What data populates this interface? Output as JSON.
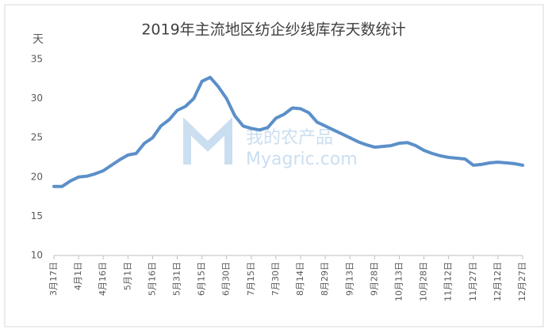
{
  "chart_data": {
    "type": "line",
    "title": "2019年主流地区纺企纱线库存天数统计",
    "y_label": "天",
    "watermark": [
      "我的农产品",
      "Myagric.com"
    ],
    "categories": [
      "3月17日",
      null,
      null,
      "4月1日",
      null,
      null,
      "4月16日",
      null,
      null,
      "5月1日",
      null,
      null,
      "5月16日",
      null,
      null,
      "5月31日",
      null,
      null,
      "6月15日",
      null,
      null,
      "6月30日",
      null,
      null,
      "7月15日",
      null,
      null,
      "7月30日",
      null,
      null,
      "8月14日",
      null,
      null,
      "8月29日",
      null,
      null,
      "9月13日",
      null,
      null,
      "9月28日",
      null,
      null,
      "10月13日",
      null,
      null,
      "10月28日",
      null,
      null,
      "11月12日",
      null,
      null,
      "11月27日",
      null,
      null,
      "12月12日",
      null,
      null,
      "12月27日"
    ],
    "series": [
      {
        "color": "#5b8fc9",
        "values": [
          18.8,
          18.8,
          19.5,
          20.0,
          20.1,
          20.4,
          20.8,
          21.5,
          22.2,
          22.8,
          23.0,
          24.3,
          25.0,
          26.5,
          27.3,
          28.5,
          29.0,
          30.0,
          32.2,
          32.7,
          31.5,
          30.0,
          27.8,
          26.5,
          26.2,
          26.0,
          26.3,
          27.5,
          28.0,
          28.8,
          28.7,
          28.2,
          27.0,
          26.5,
          26.0,
          25.5,
          25.0,
          24.5,
          24.1,
          23.8,
          23.9,
          24.0,
          24.3,
          24.4,
          24.0,
          23.4,
          23.0,
          22.7,
          22.5,
          22.4,
          22.3,
          21.5,
          21.6,
          21.8,
          21.9,
          21.8,
          21.7,
          21.5
        ]
      }
    ],
    "ylim": [
      10,
      35
    ],
    "yticks": [
      10,
      15,
      20,
      25,
      30,
      35
    ],
    "grid": false
  }
}
